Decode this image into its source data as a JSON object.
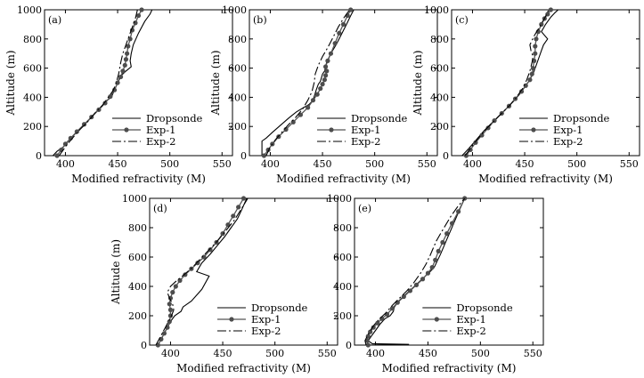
{
  "chart_data": [
    {
      "type": "line",
      "panel_label": "(a)",
      "xlabel": "Modified refractivity (M)",
      "ylabel": "Altitude (m)",
      "xlim": [
        380,
        560
      ],
      "ylim": [
        0,
        1000
      ],
      "xticks": [
        400,
        450,
        500,
        550
      ],
      "yticks": [
        0,
        200,
        400,
        600,
        800,
        1000
      ],
      "legend_position": "bottom-right",
      "series": [
        {
          "name": "Dropsonde",
          "style": "solid",
          "x": [
            388,
            392,
            398,
            404,
            412,
            422,
            432,
            440,
            444,
            447,
            450,
            452,
            455,
            458,
            463,
            462,
            463,
            465,
            470,
            476,
            481,
            483
          ],
          "y": [
            0,
            30,
            60,
            110,
            170,
            240,
            320,
            380,
            400,
            450,
            500,
            540,
            560,
            580,
            610,
            650,
            700,
            760,
            840,
            920,
            970,
            1000
          ]
        },
        {
          "name": "Exp-1",
          "style": "dots",
          "x": [
            392,
            396,
            400,
            405,
            411,
            418,
            425,
            432,
            438,
            443,
            447,
            450,
            453,
            455,
            457,
            458,
            459,
            460,
            462,
            464,
            467,
            470,
            473
          ],
          "y": [
            0,
            40,
            80,
            120,
            165,
            215,
            265,
            315,
            360,
            405,
            450,
            500,
            540,
            580,
            620,
            660,
            700,
            750,
            800,
            860,
            910,
            960,
            1000
          ]
        },
        {
          "name": "Exp-2",
          "style": "dashdot",
          "x": [
            394,
            398,
            402,
            408,
            414,
            421,
            428,
            435,
            441,
            446,
            449,
            451,
            452,
            453,
            455,
            458,
            461,
            464,
            467,
            469
          ],
          "y": [
            0,
            40,
            80,
            130,
            180,
            230,
            290,
            340,
            400,
            450,
            510,
            560,
            600,
            640,
            700,
            760,
            820,
            880,
            940,
            1000
          ]
        }
      ]
    },
    {
      "type": "line",
      "panel_label": "(b)",
      "xlabel": "Modified refractivity (M)",
      "ylabel": "Altitude (m)",
      "xlim": [
        380,
        560
      ],
      "ylim": [
        0,
        1000
      ],
      "xticks": [
        400,
        450,
        500,
        550
      ],
      "yticks": [
        0,
        200,
        400,
        600,
        800,
        1000
      ],
      "legend_position": "bottom-right",
      "series": [
        {
          "name": "Dropsonde",
          "style": "solid",
          "x": [
            392,
            392,
            396,
            402,
            410,
            418,
            425,
            432,
            437,
            441,
            444,
            446,
            448,
            450,
            452,
            454,
            458,
            463,
            468,
            473,
            477,
            480
          ],
          "y": [
            0,
            100,
            120,
            160,
            210,
            260,
            300,
            330,
            350,
            380,
            450,
            490,
            510,
            560,
            580,
            640,
            700,
            760,
            830,
            900,
            960,
            1000
          ]
        },
        {
          "name": "Exp-1",
          "style": "dots",
          "x": [
            394,
            398,
            402,
            408,
            415,
            422,
            429,
            436,
            441,
            445,
            448,
            450,
            452,
            453,
            454,
            453,
            455,
            458,
            462,
            466,
            470,
            474,
            477
          ],
          "y": [
            0,
            40,
            80,
            130,
            180,
            230,
            280,
            330,
            380,
            420,
            460,
            490,
            520,
            550,
            580,
            610,
            650,
            700,
            770,
            840,
            900,
            960,
            1000
          ]
        },
        {
          "name": "Exp-2",
          "style": "dashdot",
          "x": [
            396,
            400,
            405,
            411,
            417,
            424,
            431,
            436,
            440,
            442,
            443,
            446,
            450,
            455,
            460,
            465,
            470,
            476
          ],
          "y": [
            0,
            60,
            110,
            160,
            210,
            260,
            320,
            380,
            440,
            500,
            560,
            620,
            680,
            740,
            810,
            880,
            940,
            1000
          ]
        }
      ]
    },
    {
      "type": "line",
      "panel_label": "(c)",
      "xlabel": "Modified refractivity (M)",
      "ylabel": "Altitude (m)",
      "xlim": [
        380,
        560
      ],
      "ylim": [
        0,
        1000
      ],
      "xticks": [
        400,
        450,
        500,
        550
      ],
      "yticks": [
        0,
        200,
        400,
        600,
        800,
        1000
      ],
      "legend_position": "bottom-right",
      "series": [
        {
          "name": "Dropsonde",
          "style": "solid",
          "x": [
            390,
            394,
            399,
            405,
            411,
            418,
            425,
            432,
            439,
            445,
            450,
            454,
            458,
            461,
            464,
            466,
            468,
            472,
            466,
            470,
            475,
            479,
            482
          ],
          "y": [
            0,
            30,
            70,
            120,
            170,
            220,
            270,
            320,
            370,
            420,
            470,
            510,
            560,
            620,
            680,
            720,
            760,
            800,
            850,
            900,
            950,
            980,
            1000
          ]
        },
        {
          "name": "Exp-1",
          "style": "dots",
          "x": [
            394,
            398,
            403,
            409,
            415,
            421,
            428,
            435,
            441,
            447,
            451,
            455,
            457,
            458,
            459,
            460,
            460,
            461,
            463,
            466,
            469,
            472,
            475
          ],
          "y": [
            0,
            40,
            90,
            140,
            190,
            240,
            290,
            340,
            390,
            440,
            480,
            520,
            560,
            600,
            650,
            700,
            750,
            800,
            850,
            900,
            940,
            970,
            1000
          ]
        },
        {
          "name": "Exp-2",
          "style": "dashdot",
          "x": [
            393,
            397,
            402,
            408,
            414,
            421,
            428,
            435,
            442,
            448,
            452,
            455,
            457,
            458,
            456,
            455,
            459,
            464,
            469,
            473
          ],
          "y": [
            0,
            40,
            90,
            140,
            190,
            240,
            290,
            340,
            400,
            460,
            520,
            580,
            640,
            680,
            720,
            760,
            820,
            880,
            940,
            1000
          ]
        }
      ]
    },
    {
      "type": "line",
      "panel_label": "(d)",
      "xlabel": "Modified refractivity (M)",
      "ylabel": "Altitude (m)",
      "xlim": [
        380,
        560
      ],
      "ylim": [
        0,
        1000
      ],
      "xticks": [
        400,
        450,
        500,
        550
      ],
      "yticks": [
        0,
        200,
        400,
        600,
        800,
        1000
      ],
      "legend_position": "bottom-right",
      "series": [
        {
          "name": "Dropsonde",
          "style": "solid",
          "x": [
            388,
            391,
            394,
            397,
            400,
            404,
            410,
            412,
            420,
            430,
            437,
            425,
            430,
            438,
            445,
            452,
            458,
            464,
            468,
            473
          ],
          "y": [
            0,
            40,
            80,
            120,
            160,
            200,
            230,
            260,
            300,
            380,
            470,
            500,
            560,
            620,
            680,
            740,
            800,
            860,
            920,
            1000
          ]
        },
        {
          "name": "Exp-1",
          "style": "dots",
          "x": [
            388,
            391,
            394,
            397,
            399,
            400,
            400,
            399,
            400,
            402,
            405,
            409,
            414,
            420,
            426,
            432,
            438,
            444,
            450,
            455,
            460,
            465,
            470
          ],
          "y": [
            0,
            40,
            80,
            120,
            160,
            200,
            240,
            280,
            320,
            360,
            400,
            440,
            480,
            520,
            560,
            600,
            650,
            700,
            760,
            820,
            880,
            940,
            1000
          ]
        },
        {
          "name": "Exp-2",
          "style": "dashdot",
          "x": [
            386,
            389,
            392,
            395,
            398,
            401,
            403,
            402,
            399,
            397,
            400,
            406,
            413,
            421,
            429,
            437,
            445,
            453,
            461,
            468,
            474
          ],
          "y": [
            0,
            40,
            80,
            120,
            160,
            200,
            240,
            280,
            320,
            360,
            400,
            440,
            480,
            530,
            590,
            650,
            710,
            780,
            850,
            930,
            1000
          ]
        }
      ]
    },
    {
      "type": "line",
      "panel_label": "(e)",
      "xlabel": "Modified refractivity (M)",
      "ylabel": "",
      "xlim": [
        380,
        560
      ],
      "ylim": [
        0,
        1000
      ],
      "xticks": [
        400,
        450,
        500,
        550
      ],
      "yticks": [
        0,
        200,
        400,
        600,
        800,
        1000
      ],
      "legend_position": "bottom-right",
      "series": [
        {
          "name": "Dropsonde",
          "style": "solid",
          "x": [
            391,
            432,
            397,
            393,
            396,
            400,
            404,
            409,
            414,
            417,
            418,
            422,
            428,
            434,
            440,
            446,
            452,
            456,
            462,
            468,
            474,
            480,
            485
          ],
          "y": [
            0,
            5,
            10,
            30,
            60,
            100,
            140,
            180,
            200,
            230,
            260,
            300,
            340,
            380,
            420,
            460,
            500,
            530,
            620,
            720,
            820,
            920,
            1000
          ]
        },
        {
          "name": "Exp-1",
          "style": "dots",
          "x": [
            393,
            392,
            393,
            395,
            398,
            402,
            406,
            411,
            416,
            421,
            427,
            433,
            439,
            445,
            450,
            454,
            457,
            460,
            464,
            468,
            473,
            479,
            485
          ],
          "y": [
            0,
            30,
            60,
            90,
            120,
            150,
            180,
            210,
            250,
            290,
            330,
            370,
            410,
            450,
            490,
            530,
            580,
            640,
            700,
            760,
            830,
            910,
            1000
          ]
        },
        {
          "name": "Exp-2",
          "style": "dashdot",
          "x": [
            391,
            390,
            392,
            395,
            399,
            404,
            410,
            416,
            423,
            430,
            437,
            443,
            448,
            452,
            455,
            458,
            462,
            467,
            472,
            478,
            485
          ],
          "y": [
            0,
            30,
            60,
            100,
            140,
            180,
            220,
            270,
            320,
            370,
            430,
            490,
            550,
            610,
            660,
            710,
            760,
            820,
            880,
            940,
            1000
          ]
        }
      ]
    }
  ]
}
